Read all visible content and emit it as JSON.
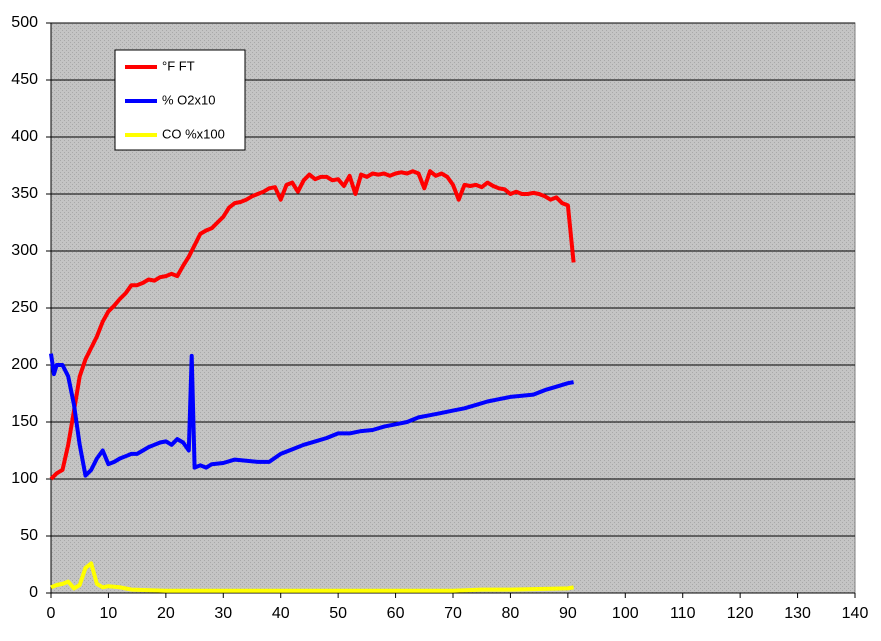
{
  "chart_data": {
    "type": "line",
    "xlim": [
      0,
      140
    ],
    "xticks": [
      0,
      10,
      20,
      30,
      40,
      50,
      60,
      70,
      80,
      90,
      100,
      110,
      120,
      130,
      140
    ],
    "ylim": [
      0,
      500
    ],
    "yticks": [
      0,
      50,
      100,
      150,
      200,
      250,
      300,
      350,
      400,
      450,
      500
    ],
    "grid": true,
    "legend": "upper-left",
    "series": [
      {
        "name": "°F FT",
        "color": "#ff0000",
        "x": [
          0,
          1,
          2,
          3,
          4,
          5,
          6,
          7,
          8,
          9,
          10,
          11,
          12,
          13,
          14,
          15,
          16,
          17,
          18,
          19,
          20,
          21,
          22,
          23,
          24,
          25,
          26,
          27,
          28,
          29,
          30,
          31,
          32,
          33,
          34,
          35,
          36,
          37,
          38,
          39,
          40,
          41,
          42,
          43,
          44,
          45,
          46,
          47,
          48,
          49,
          50,
          51,
          52,
          53,
          54,
          55,
          56,
          57,
          58,
          59,
          60,
          61,
          62,
          63,
          64,
          65,
          66,
          67,
          68,
          69,
          70,
          71,
          72,
          73,
          74,
          75,
          76,
          77,
          78,
          79,
          80,
          81,
          82,
          83,
          84,
          85,
          86,
          87,
          88,
          89,
          90,
          91
        ],
        "values": [
          100,
          105,
          108,
          130,
          160,
          190,
          205,
          215,
          225,
          238,
          247,
          252,
          258,
          263,
          270,
          270,
          272,
          275,
          274,
          277,
          278,
          280,
          278,
          287,
          295,
          305,
          315,
          318,
          320,
          325,
          330,
          338,
          342,
          343,
          345,
          348,
          350,
          352,
          355,
          356,
          345,
          358,
          360,
          352,
          362,
          367,
          363,
          365,
          365,
          362,
          363,
          357,
          366,
          350,
          367,
          365,
          368,
          367,
          368,
          366,
          368,
          369,
          368,
          370,
          368,
          355,
          370,
          366,
          368,
          365,
          358,
          345,
          358,
          357,
          358,
          356,
          360,
          357,
          355,
          354,
          350,
          352,
          350,
          350,
          351,
          350,
          348,
          345,
          347,
          342,
          340,
          290
        ]
      },
      {
        "name": "% O2x10",
        "color": "#0000ff",
        "x": [
          0,
          0.5,
          1,
          2,
          3,
          4,
          5,
          6,
          7,
          8,
          9,
          10,
          11,
          12,
          13,
          14,
          15,
          16,
          17,
          18,
          19,
          20,
          21,
          22,
          23,
          24,
          24.5,
          25,
          26,
          27,
          28,
          30,
          32,
          34,
          36,
          38,
          40,
          42,
          44,
          46,
          48,
          50,
          52,
          54,
          56,
          58,
          60,
          62,
          64,
          66,
          68,
          70,
          72,
          74,
          76,
          78,
          80,
          82,
          84,
          86,
          88,
          90,
          91
        ],
        "values": [
          210,
          192,
          200,
          200,
          190,
          165,
          130,
          103,
          108,
          118,
          125,
          113,
          115,
          118,
          120,
          122,
          122,
          125,
          128,
          130,
          132,
          133,
          130,
          135,
          132,
          125,
          208,
          110,
          112,
          110,
          113,
          114,
          117,
          116,
          115,
          115,
          122,
          126,
          130,
          133,
          136,
          140,
          140,
          142,
          143,
          146,
          148,
          150,
          154,
          156,
          158,
          160,
          162,
          165,
          168,
          170,
          172,
          173,
          174,
          178,
          181,
          184,
          185
        ]
      },
      {
        "name": "CO %x100",
        "color": "#ffff00",
        "x": [
          0,
          1,
          2,
          3,
          4,
          5,
          6,
          7,
          8,
          9,
          10,
          12,
          14,
          20,
          30,
          50,
          70,
          75,
          80,
          90,
          91
        ],
        "values": [
          5,
          7,
          8,
          10,
          4,
          7,
          22,
          26,
          8,
          5,
          6,
          5,
          3,
          2,
          2,
          2,
          2,
          3,
          3,
          4,
          5
        ]
      }
    ]
  }
}
